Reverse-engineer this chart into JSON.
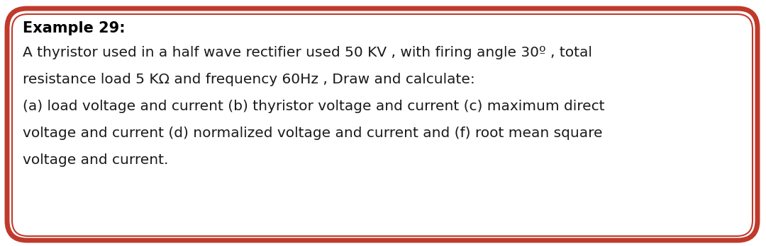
{
  "title": "Example 29:",
  "line1": "A thyristor used in a half wave rectifier used 50 KV , with firing angle 30º , total",
  "line2": "resistance load 5 KΩ and frequency 60Hz , Draw and calculate:",
  "line3": "(a) load voltage and current (b) thyristor voltage and current (c) maximum direct",
  "line4": "voltage and current (d) normalized voltage and current and (f) root mean square",
  "line5": "voltage and current.",
  "bg_color": "#ffffff",
  "border_color_outer": "#c0392b",
  "border_color_inner": "#c0392b",
  "title_fontsize": 15,
  "body_fontsize": 14.5,
  "title_color": "#000000",
  "body_color": "#1a1a1a",
  "outer_lw": 5,
  "inner_lw": 1.5
}
